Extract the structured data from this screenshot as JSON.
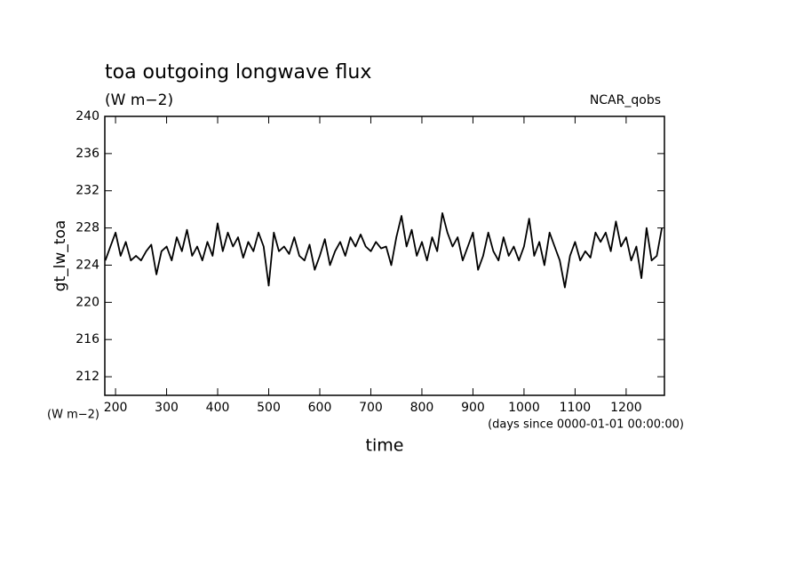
{
  "chart_data": {
    "type": "line",
    "title": "toa outgoing longwave flux",
    "units": "(W m−2)",
    "source": "NCAR_qobs",
    "y_label": "gt_lw_toa",
    "x_label": "time",
    "x_units": "(days since 0000-01-01 00:00:00)",
    "x": [
      180,
      190,
      200,
      210,
      220,
      230,
      240,
      250,
      260,
      270,
      280,
      290,
      300,
      310,
      320,
      330,
      340,
      350,
      360,
      370,
      380,
      390,
      400,
      410,
      420,
      430,
      440,
      450,
      460,
      470,
      480,
      490,
      500,
      510,
      520,
      530,
      540,
      550,
      560,
      570,
      580,
      590,
      600,
      610,
      620,
      630,
      640,
      650,
      660,
      670,
      680,
      690,
      700,
      710,
      720,
      730,
      740,
      750,
      760,
      770,
      780,
      790,
      800,
      810,
      820,
      830,
      840,
      850,
      860,
      870,
      880,
      890,
      900,
      910,
      920,
      930,
      940,
      950,
      960,
      970,
      980,
      990,
      1000,
      1010,
      1020,
      1030,
      1040,
      1050,
      1060,
      1070,
      1080,
      1090,
      1100,
      1110,
      1120,
      1130,
      1140,
      1150,
      1160,
      1170,
      1180,
      1190,
      1200,
      1210,
      1220,
      1230,
      1240,
      1250,
      1260,
      1270
    ],
    "series": [
      {
        "color": "#000000",
        "values": [
          224.5,
          226,
          227.5,
          225,
          226.5,
          224.5,
          225,
          224.5,
          225.5,
          226.2,
          223,
          225.5,
          226,
          224.5,
          227,
          225.5,
          227.8,
          225,
          226,
          224.5,
          226.5,
          225,
          228.5,
          225.5,
          227.5,
          226,
          227,
          224.8,
          226.5,
          225.5,
          227.5,
          226,
          221.8,
          227.5,
          225.5,
          226,
          225.2,
          227,
          225,
          224.5,
          226.2,
          223.5,
          225,
          226.8,
          224,
          225.5,
          226.5,
          225,
          227,
          226,
          227.3,
          226,
          225.5,
          226.5,
          225.8,
          226,
          224,
          227,
          229.3,
          226,
          227.8,
          225,
          226.5,
          224.5,
          227,
          225.5,
          229.6,
          227.5,
          226,
          227,
          224.5,
          226,
          227.5,
          223.5,
          225,
          227.5,
          225.5,
          224.5,
          227,
          225,
          226,
          224.5,
          226,
          229,
          225,
          226.5,
          224,
          227.5,
          226,
          224.5,
          221.6,
          225,
          226.5,
          224.5,
          225.5,
          224.8,
          227.5,
          226.5,
          227.5,
          225.5,
          228.7,
          226,
          227,
          224.5,
          226,
          222.6,
          228,
          224.5,
          225,
          228
        ]
      }
    ],
    "xlim": [
      179,
      1275
    ],
    "xticks": [
      200,
      300,
      400,
      500,
      600,
      700,
      800,
      900,
      1000,
      1100,
      1200
    ],
    "ylim": [
      210,
      240
    ],
    "yticks": [
      212,
      216,
      220,
      224,
      228,
      232,
      236,
      240
    ]
  }
}
